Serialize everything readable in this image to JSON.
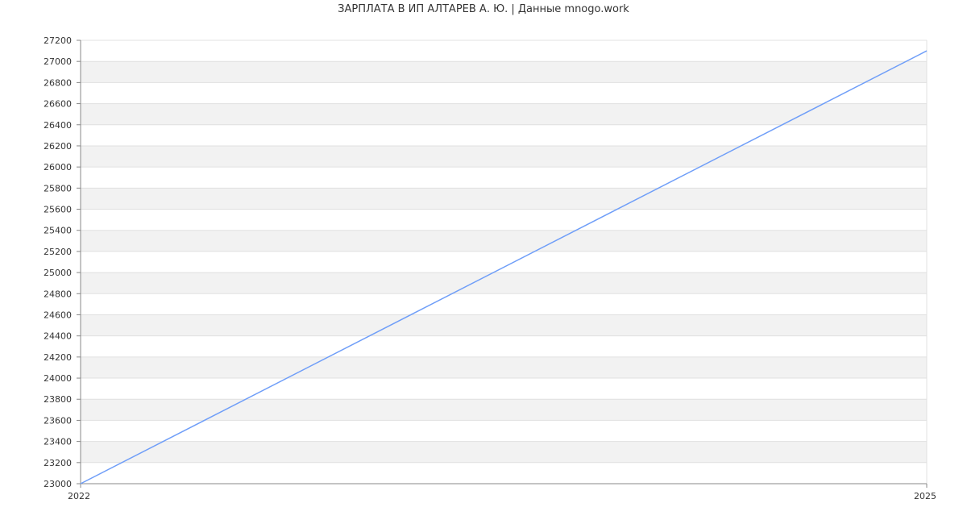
{
  "chart_data": {
    "type": "line",
    "title": "ЗАРПЛАТА В ИП АЛТАРЕВ А. Ю. | Данные mnogo.work",
    "x": [
      2022,
      2025
    ],
    "series": [
      {
        "values": [
          23000,
          27100
        ],
        "color": "#6f9ef8"
      }
    ],
    "xlim": [
      2022,
      2025
    ],
    "ylim": [
      23000,
      27200
    ],
    "x_ticks": [
      "2022",
      "2025"
    ],
    "y_ticks": [
      23000,
      23200,
      23400,
      23600,
      23800,
      24000,
      24200,
      24400,
      24600,
      24800,
      25000,
      25200,
      25400,
      25600,
      25800,
      26000,
      26200,
      26400,
      26600,
      26800,
      27000,
      27200
    ],
    "grid": true,
    "band_color": "#f2f2f2",
    "xlabel": "",
    "ylabel": ""
  }
}
